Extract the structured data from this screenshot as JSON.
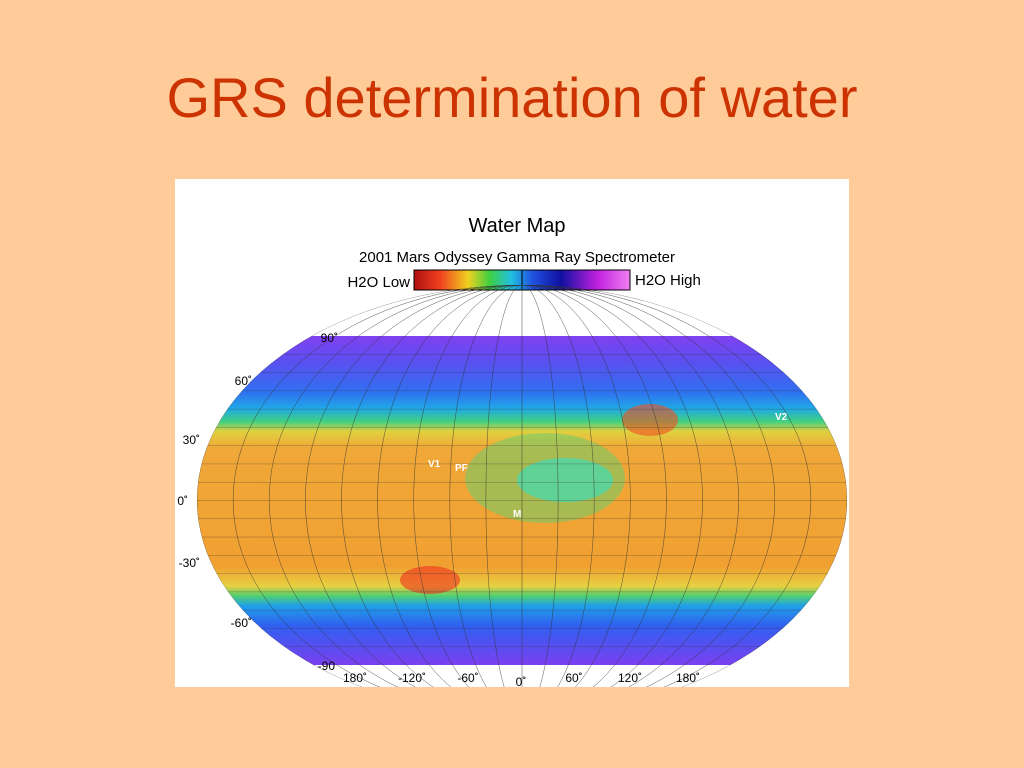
{
  "title": "GRS determination of water",
  "figure": {
    "title": "Water Map",
    "subtitle": "2001 Mars Odyssey Gamma Ray Spectrometer",
    "legend": {
      "low": "H2O Low",
      "high": "H2O High"
    },
    "latitude_labels": [
      "90˚",
      "60˚",
      "30˚",
      "0˚",
      "-30˚",
      "-60˚",
      "-90"
    ],
    "longitude_labels": [
      "180˚",
      "-120˚",
      "-60˚",
      "0˚",
      "60˚",
      "120˚",
      "180˚"
    ],
    "region_labels": [
      "V1",
      "PF",
      "M",
      "V2"
    ]
  }
}
